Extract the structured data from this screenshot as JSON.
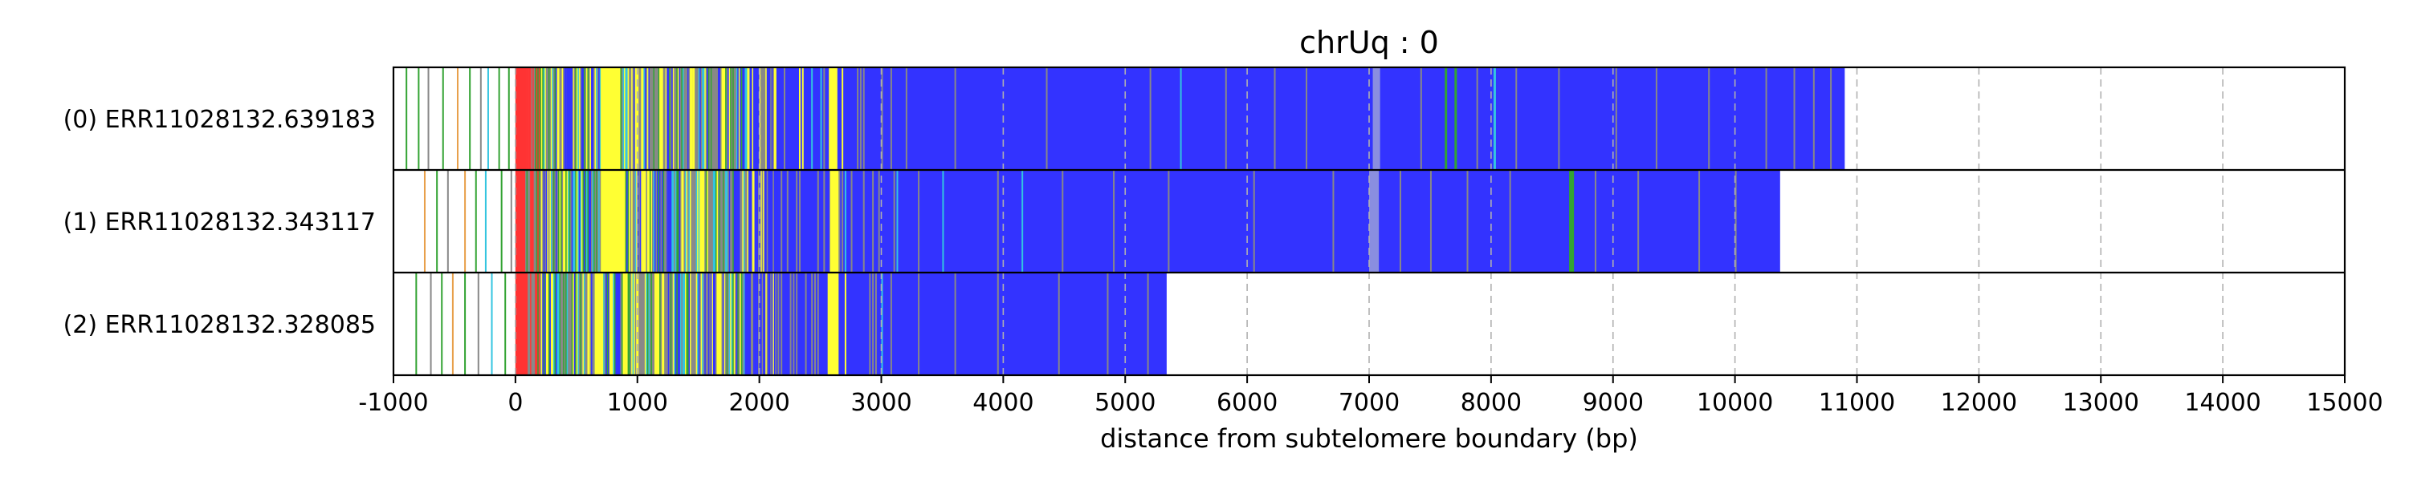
{
  "chart_data": {
    "type": "heatmap",
    "title": "chrUq : 0",
    "xlabel": "distance from subtelomere boundary (bp)",
    "ylabel": "",
    "xlim": [
      -1000,
      15000
    ],
    "xticks": [
      -1000,
      0,
      1000,
      2000,
      3000,
      4000,
      5000,
      6000,
      7000,
      8000,
      9000,
      10000,
      11000,
      12000,
      13000,
      14000,
      15000
    ],
    "xtick_labels": [
      "-1000",
      "0",
      "1000",
      "2000",
      "3000",
      "4000",
      "5000",
      "6000",
      "7000",
      "8000",
      "9000",
      "10000",
      "11000",
      "12000",
      "13000",
      "14000",
      "15000"
    ],
    "grid": {
      "x": true,
      "y": false,
      "style": "dashed"
    },
    "colors": {
      "blue": "#3333ff",
      "yellow": "#ffff33",
      "red": "#ff3333",
      "green": "#33a333",
      "cyan": "#33c4e0",
      "gray": "#888888",
      "orange": "#e8a04a",
      "periwinkle": "#8a8ee0"
    },
    "reads": [
      {
        "label": "(0) ERR11028132.639183",
        "end": 10900,
        "blue_start": 2150,
        "sparse_marks": [
          {
            "x": -900,
            "c": "green"
          },
          {
            "x": -800,
            "c": "green"
          },
          {
            "x": -720,
            "c": "gray"
          },
          {
            "x": -600,
            "c": "green"
          },
          {
            "x": -480,
            "c": "orange"
          },
          {
            "x": -380,
            "c": "green"
          },
          {
            "x": -290,
            "c": "gray"
          },
          {
            "x": -230,
            "c": "cyan"
          },
          {
            "x": -140,
            "c": "green"
          },
          {
            "x": -60,
            "c": "green"
          }
        ],
        "red": [
          [
            0,
            90
          ]
        ],
        "yellow": [
          [
            700,
            860
          ],
          [
            980,
            1010
          ],
          [
            1180,
            1210
          ],
          [
            1450,
            1470
          ],
          [
            2570,
            2640
          ]
        ],
        "blue_patches": [
          [
            420,
            470
          ],
          [
            1240,
            1260
          ],
          [
            1960,
            2000
          ],
          [
            2250,
            2500
          ],
          [
            2700,
            2750
          ]
        ],
        "special": [
          {
            "range": [
              7030,
              7090
            ],
            "c": "periwinkle"
          },
          {
            "range": [
              7620,
              7640
            ],
            "c": "green"
          },
          {
            "range": [
              7700,
              7720
            ],
            "c": "green"
          },
          {
            "range": [
              8020,
              8040
            ],
            "c": "cyan"
          }
        ],
        "stripes": [
          {
            "x": 3200,
            "c": "gray"
          },
          {
            "x": 3600,
            "c": "gray"
          },
          {
            "x": 4350,
            "c": "gray"
          },
          {
            "x": 5200,
            "c": "gray"
          },
          {
            "x": 5450,
            "c": "cyan"
          },
          {
            "x": 5820,
            "c": "gray"
          },
          {
            "x": 6220,
            "c": "gray"
          },
          {
            "x": 6480,
            "c": "gray"
          },
          {
            "x": 7420,
            "c": "gray"
          },
          {
            "x": 7880,
            "c": "gray"
          },
          {
            "x": 8200,
            "c": "gray"
          },
          {
            "x": 8550,
            "c": "gray"
          },
          {
            "x": 9020,
            "c": "gray"
          },
          {
            "x": 9350,
            "c": "gray"
          },
          {
            "x": 9780,
            "c": "gray"
          },
          {
            "x": 10250,
            "c": "gray"
          },
          {
            "x": 10480,
            "c": "gray"
          },
          {
            "x": 10640,
            "c": "gray"
          },
          {
            "x": 10780,
            "c": "gray"
          }
        ]
      },
      {
        "label": "(1) ERR11028132.343117",
        "end": 10370,
        "blue_start": 2150,
        "sparse_marks": [
          {
            "x": -750,
            "c": "orange"
          },
          {
            "x": -650,
            "c": "green"
          },
          {
            "x": -560,
            "c": "gray"
          },
          {
            "x": -420,
            "c": "orange"
          },
          {
            "x": -330,
            "c": "green"
          },
          {
            "x": -250,
            "c": "cyan"
          },
          {
            "x": -120,
            "c": "green"
          },
          {
            "x": -40,
            "c": "gray"
          }
        ],
        "red": [
          [
            0,
            80
          ]
        ],
        "yellow": [
          [
            700,
            900
          ],
          [
            1040,
            1070
          ],
          [
            1520,
            1550
          ],
          [
            2580,
            2650
          ]
        ],
        "blue_patches": [
          [
            1250,
            1280
          ],
          [
            1800,
            1840
          ],
          [
            2200,
            2480
          ]
        ],
        "special": [
          {
            "range": [
              7000,
              7080
            ],
            "c": "periwinkle"
          },
          {
            "range": [
              8640,
              8680
            ],
            "c": "green"
          }
        ],
        "stripes": [
          {
            "x": 3300,
            "c": "gray"
          },
          {
            "x": 3500,
            "c": "cyan"
          },
          {
            "x": 3950,
            "c": "gray"
          },
          {
            "x": 4150,
            "c": "cyan"
          },
          {
            "x": 4480,
            "c": "gray"
          },
          {
            "x": 4900,
            "c": "gray"
          },
          {
            "x": 5350,
            "c": "gray"
          },
          {
            "x": 6050,
            "c": "gray"
          },
          {
            "x": 6700,
            "c": "gray"
          },
          {
            "x": 7250,
            "c": "gray"
          },
          {
            "x": 7500,
            "c": "gray"
          },
          {
            "x": 7800,
            "c": "gray"
          },
          {
            "x": 8150,
            "c": "gray"
          },
          {
            "x": 8850,
            "c": "gray"
          },
          {
            "x": 9200,
            "c": "gray"
          },
          {
            "x": 9700,
            "c": "gray"
          },
          {
            "x": 10000,
            "c": "gray"
          }
        ]
      },
      {
        "label": "(2) ERR11028132.328085",
        "end": 5340,
        "blue_start": 2150,
        "sparse_marks": [
          {
            "x": -820,
            "c": "green"
          },
          {
            "x": -700,
            "c": "gray"
          },
          {
            "x": -610,
            "c": "green"
          },
          {
            "x": -520,
            "c": "orange"
          },
          {
            "x": -420,
            "c": "green"
          },
          {
            "x": -310,
            "c": "gray"
          },
          {
            "x": -200,
            "c": "cyan"
          },
          {
            "x": -90,
            "c": "green"
          }
        ],
        "red": [
          [
            0,
            100
          ]
        ],
        "yellow": [
          [
            650,
            720
          ],
          [
            880,
            900
          ],
          [
            1200,
            1220
          ],
          [
            2560,
            2650
          ]
        ],
        "blue_patches": [
          [
            1880,
            1920
          ],
          [
            2180,
            2450
          ]
        ],
        "special": [],
        "stripes": [
          {
            "x": 3300,
            "c": "gray"
          },
          {
            "x": 3600,
            "c": "gray"
          },
          {
            "x": 3950,
            "c": "gray"
          },
          {
            "x": 4450,
            "c": "gray"
          },
          {
            "x": 4850,
            "c": "gray"
          },
          {
            "x": 5180,
            "c": "gray"
          }
        ]
      }
    ]
  }
}
